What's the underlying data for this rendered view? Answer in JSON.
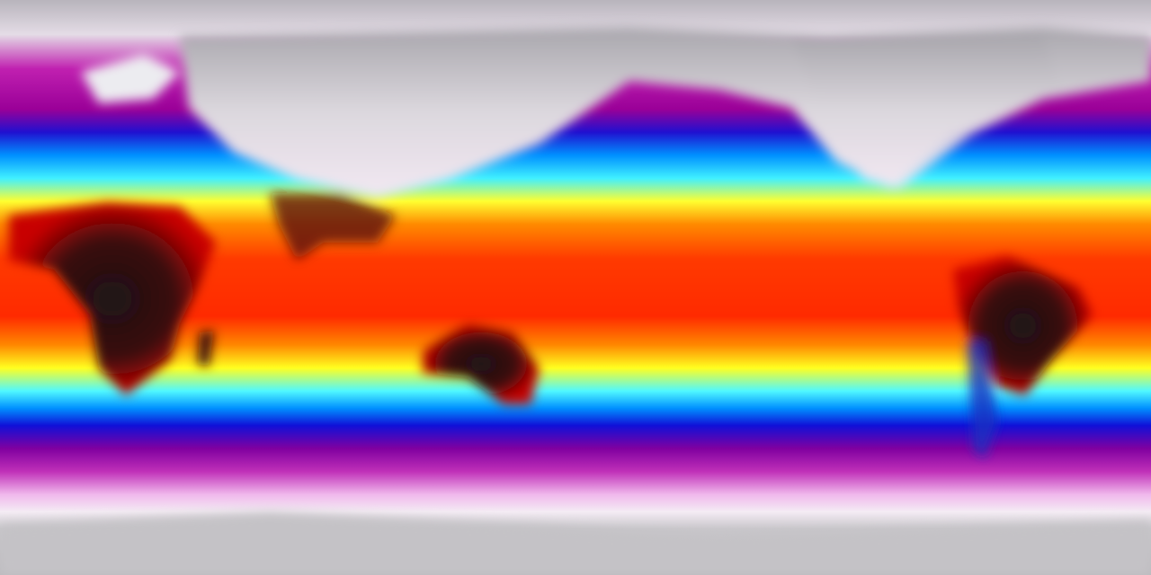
{
  "map": {
    "projection": "equirectangular",
    "variable_shown_by_color": "surface temperature",
    "colorscale": [
      "#1a1418",
      "#5a0a0a",
      "#d40000",
      "#ff5a00",
      "#ffb000",
      "#ffff00",
      "#5affff",
      "#00a0ff",
      "#0000ff",
      "#9a009a",
      "#e060d0",
      "#f0e0f0",
      "#c8c6ca"
    ],
    "colors": {
      "polar": "#c8c6ca",
      "cold": "#a0109a",
      "cool": "#1010e0",
      "mild": "#40f0ff",
      "warm": "#ffff20",
      "hot": "#ff3000",
      "hottest_land": "#2a1214"
    }
  }
}
